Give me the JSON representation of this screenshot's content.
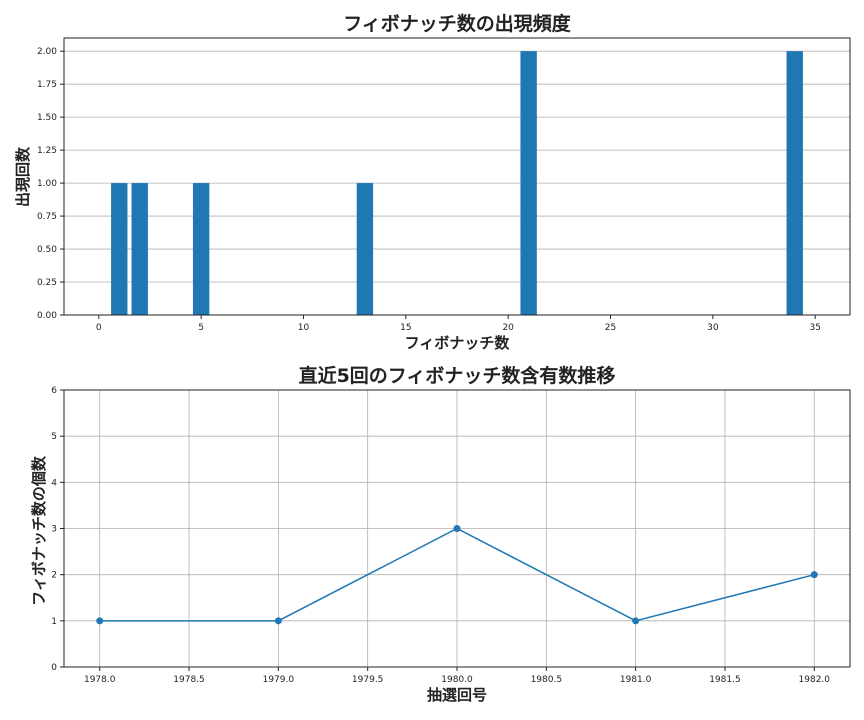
{
  "chart_data": [
    {
      "type": "bar",
      "title": "フィボナッチ数の出現頻度",
      "xlabel": "フィボナッチ数",
      "ylabel": "出現回数",
      "x": [
        1,
        2,
        5,
        13,
        21,
        34
      ],
      "values": [
        1,
        1,
        1,
        1,
        2,
        2
      ],
      "xlim": [
        -1.7,
        36.7
      ],
      "ylim": [
        0,
        2.1
      ],
      "xticks": [
        0,
        5,
        10,
        15,
        20,
        25,
        30,
        35
      ],
      "xtick_labels": [
        "0",
        "5",
        "10",
        "15",
        "20",
        "25",
        "30",
        "35"
      ],
      "yticks": [
        0,
        0.25,
        0.5,
        0.75,
        1.0,
        1.25,
        1.5,
        1.75,
        2.0
      ],
      "ytick_labels": [
        "0.00",
        "0.25",
        "0.50",
        "0.75",
        "1.00",
        "1.25",
        "1.50",
        "1.75",
        "2.00"
      ],
      "grid": "y",
      "color": "#1f77b4"
    },
    {
      "type": "line",
      "title": "直近5回のフィボナッチ数含有数推移",
      "xlabel": "抽選回号",
      "ylabel": "フィボナッチ数の個数",
      "x": [
        1978,
        1979,
        1980,
        1981,
        1982
      ],
      "values": [
        1,
        1,
        3,
        1,
        2
      ],
      "xlim": [
        1977.8,
        1982.2
      ],
      "ylim": [
        0,
        6
      ],
      "xticks": [
        1978.0,
        1978.5,
        1979.0,
        1979.5,
        1980.0,
        1980.5,
        1981.0,
        1981.5,
        1982.0
      ],
      "xtick_labels": [
        "1978.0",
        "1978.5",
        "1979.0",
        "1979.5",
        "1980.0",
        "1980.5",
        "1981.0",
        "1981.5",
        "1982.0"
      ],
      "yticks": [
        0,
        1,
        2,
        3,
        4,
        5,
        6
      ],
      "ytick_labels": [
        "0",
        "1",
        "2",
        "3",
        "4",
        "5",
        "6"
      ],
      "grid": "both",
      "marker": "o",
      "color": "#1f77b4"
    }
  ]
}
